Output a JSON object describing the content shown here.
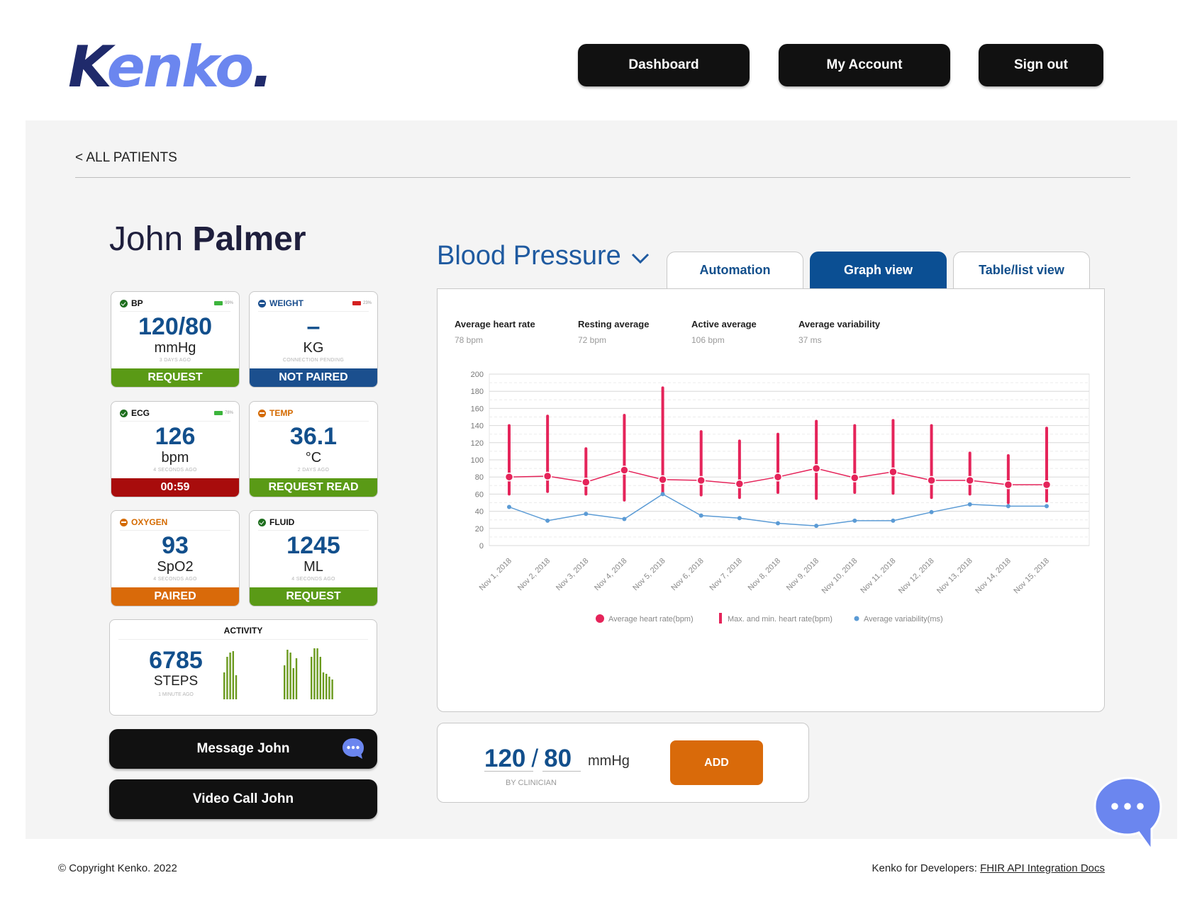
{
  "brand": {
    "logo_k": "K",
    "logo_rest": "enko",
    "logo_dot": "."
  },
  "nav": {
    "dashboard": "Dashboard",
    "account": "My Account",
    "signout": "Sign out"
  },
  "back_link": "< ALL PATIENTS",
  "patient": {
    "first": "John",
    "last": "Palmer"
  },
  "tiles": [
    {
      "label": "BP",
      "status": "ok",
      "battery": "99%",
      "battery_color": "#3cb43c",
      "value": "120/80",
      "unit": "mmHg",
      "time": "3 DAYS AGO",
      "action": "REQUEST",
      "action_color": "#5a9a16"
    },
    {
      "label": "WEIGHT",
      "status": "pend",
      "battery": "23%",
      "battery_color": "#d42020",
      "value": "–",
      "unit": "KG",
      "time": "CONNECTION PENDING",
      "action": "NOT PAIRED",
      "action_color": "#1b4f8e"
    },
    {
      "label": "ECG",
      "status": "ok",
      "battery": "78%",
      "battery_color": "#3cb43c",
      "value": "126",
      "unit": "bpm",
      "time": "4 SECONDS AGO",
      "action": "00:59",
      "action_color": "#a80c0c"
    },
    {
      "label": "TEMP",
      "status": "warn",
      "value": "36.1",
      "unit": "°C",
      "time": "2 DAYS AGO",
      "action": "REQUEST READ",
      "action_color": "#5a9a16"
    },
    {
      "label": "OXYGEN",
      "status": "warn",
      "value": "93",
      "unit": "SpO2",
      "time": "4 SECONDS AGO",
      "action": "PAIRED",
      "action_color": "#d96a0a"
    },
    {
      "label": "FLUID",
      "status": "ok",
      "value": "1245",
      "unit": "ML",
      "time": "4 SECONDS AGO",
      "action": "REQUEST",
      "action_color": "#5a9a16"
    }
  ],
  "activity": {
    "title": "ACTIVITY",
    "value": "6785",
    "unit": "STEPS",
    "time": "1 MINUTE AGO",
    "bar_color": "#6b9a1e"
  },
  "actions": {
    "message": "Message John",
    "video": "Video Call John"
  },
  "section": {
    "title": "Blood Pressure"
  },
  "tabs": [
    "Automation",
    "Graph view",
    "Table/list view"
  ],
  "active_tab": "Graph view",
  "stats": [
    {
      "label": "Average heart rate",
      "value": "78 bpm"
    },
    {
      "label": "Resting average",
      "value": "72 bpm"
    },
    {
      "label": "Active average",
      "value": "106 bpm"
    },
    {
      "label": "Average variability",
      "value": "37 ms"
    }
  ],
  "chart_data": {
    "type": "line",
    "x": [
      "Nov 1, 2018",
      "Nov 2, 2018",
      "Nov 3, 2018",
      "Nov 4, 2018",
      "Nov 5, 2018",
      "Nov 6, 2018",
      "Nov 7, 2018",
      "Nov 8, 2018",
      "Nov 9, 2018",
      "Nov 10, 2018",
      "Nov 11, 2018",
      "Nov 12, 2018",
      "Nov 13, 2018",
      "Nov 14, 2018",
      "Nov 15, 2018"
    ],
    "ylim": [
      0,
      200
    ],
    "yticks": [
      0,
      20,
      40,
      60,
      80,
      100,
      120,
      140,
      160,
      180,
      200
    ],
    "grid": true,
    "legend_position": "bottom",
    "series": [
      {
        "name": "Average heart rate(bpm)",
        "color": "#e5245a",
        "values": [
          80,
          81,
          74,
          88,
          77,
          76,
          72,
          80,
          90,
          79,
          86,
          76,
          76,
          71,
          71
        ]
      },
      {
        "name": "Max. and min. heart rate(bpm)",
        "color": "#e5245a",
        "max": [
          140,
          151,
          113,
          152,
          184,
          133,
          122,
          130,
          145,
          140,
          146,
          140,
          108,
          105,
          137
        ],
        "min": [
          60,
          63,
          60,
          53,
          60,
          59,
          56,
          62,
          55,
          62,
          61,
          56,
          60,
          50,
          52
        ]
      },
      {
        "name": "Average variability(ms)",
        "color": "#5b9bd5",
        "values": [
          45,
          29,
          37,
          31,
          60,
          35,
          32,
          26,
          23,
          29,
          29,
          39,
          48,
          46,
          46
        ]
      }
    ]
  },
  "entry": {
    "sys": "120",
    "dia": "80",
    "unit": "mmHg",
    "by": "BY CLINICIAN",
    "add": "ADD"
  },
  "footer": {
    "copyright": "© Copyright Kenko. 2022",
    "dev_prefix": "Kenko for Developers: ",
    "dev_link": "FHIR API Integration Docs"
  }
}
